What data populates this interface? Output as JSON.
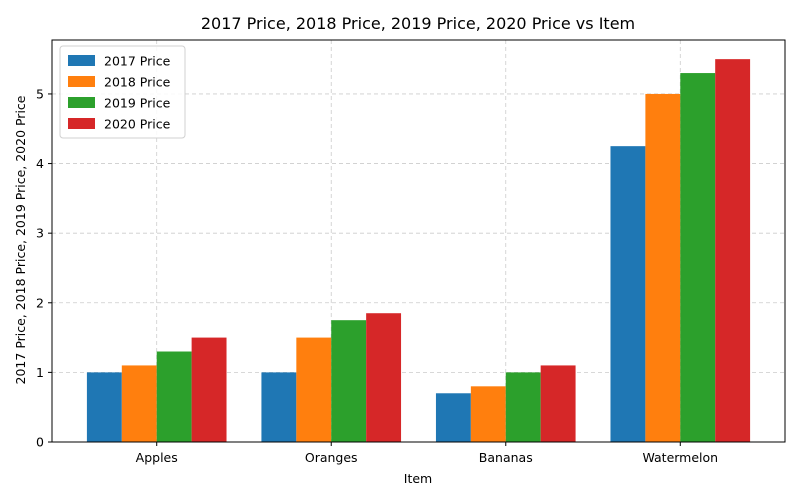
{
  "chart_data": {
    "type": "bar",
    "title": "2017 Price, 2018 Price, 2019 Price, 2020 Price vs Item",
    "xlabel": "Item",
    "ylabel": "2017 Price, 2018 Price, 2019 Price, 2020 Price",
    "categories": [
      "Apples",
      "Oranges",
      "Bananas",
      "Watermelon"
    ],
    "series": [
      {
        "name": "2017 Price",
        "color": "#1f77b4",
        "values": [
          1.0,
          1.0,
          0.7,
          4.25
        ]
      },
      {
        "name": "2018 Price",
        "color": "#ff7f0e",
        "values": [
          1.1,
          1.5,
          0.8,
          5.0
        ]
      },
      {
        "name": "2019 Price",
        "color": "#2ca02c",
        "values": [
          1.3,
          1.75,
          1.0,
          5.3
        ]
      },
      {
        "name": "2020 Price",
        "color": "#d62728",
        "values": [
          1.5,
          1.85,
          1.1,
          5.5
        ]
      }
    ],
    "ylim": [
      0,
      5.775
    ],
    "yticks": [
      0,
      1,
      2,
      3,
      4,
      5
    ],
    "grid": true,
    "legend_position": "top-left"
  }
}
